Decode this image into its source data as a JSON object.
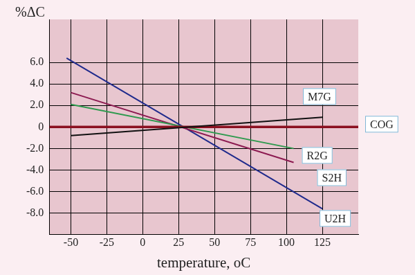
{
  "chart_data": {
    "type": "line",
    "y_label": "%ΔC",
    "x_label": "temperature, oC",
    "xlim": [
      -65,
      150
    ],
    "xticks": [
      -50,
      -25,
      0,
      25,
      50,
      75,
      100,
      125
    ],
    "ylim": [
      -10,
      10
    ],
    "yticks": [
      {
        "value": -8,
        "label": "-8.0"
      },
      {
        "value": -6,
        "label": "-6.0"
      },
      {
        "value": -4,
        "label": "-4.0"
      },
      {
        "value": -2,
        "label": "-2.0"
      },
      0,
      {
        "value": 2,
        "label": "2.0"
      },
      {
        "value": 4,
        "label": "4.0"
      },
      {
        "value": 6,
        "label": "6.0"
      }
    ],
    "grid": true,
    "series": [
      {
        "name": "M7G",
        "color": "#111111",
        "x": [
          -50,
          125
        ],
        "values": [
          -0.8,
          0.9
        ]
      },
      {
        "name": "COG",
        "color": "#8b1020",
        "x": [
          -65,
          150
        ],
        "values": [
          0,
          0
        ]
      },
      {
        "name": "R2G",
        "color": "#2e9a4e",
        "x": [
          -50,
          105
        ],
        "values": [
          2.1,
          -2.0
        ]
      },
      {
        "name": "S2H",
        "color": "#8c1a50",
        "x": [
          -50,
          105
        ],
        "values": [
          3.2,
          -3.3
        ]
      },
      {
        "name": "U2H",
        "color": "#1f2a8c",
        "x": [
          -53,
          125
        ],
        "values": [
          6.4,
          -7.6
        ]
      }
    ]
  }
}
